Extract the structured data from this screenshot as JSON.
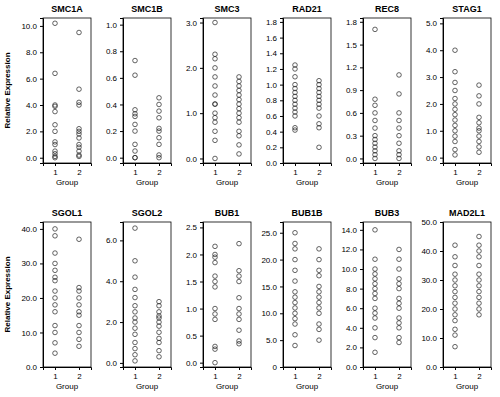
{
  "chart_data": [
    {
      "type": "scatter",
      "title": "SMC1A",
      "y_label": "Relative Expression",
      "x_label": "Group",
      "marker": "circle",
      "x": [
        1,
        1,
        1,
        1,
        1,
        1,
        1,
        1,
        1,
        1,
        1,
        1,
        1,
        2,
        2,
        2,
        2,
        2,
        2,
        2,
        2,
        2,
        2,
        2,
        2,
        2
      ],
      "values": [
        10.2,
        6.4,
        4.0,
        3.9,
        3.5,
        2.5,
        2.0,
        1.2,
        1.0,
        0.5,
        0.3,
        0.1,
        0.0,
        9.5,
        5.2,
        4.2,
        4.0,
        2.2,
        2.0,
        1.8,
        1.5,
        1.0,
        0.8,
        0.5,
        0.2,
        0.1
      ],
      "xlim": [
        0.5,
        2.5
      ],
      "xticks": [
        1,
        2
      ],
      "ylim": [
        -0.4,
        10.6
      ],
      "yticks": [
        {
          "value": 0,
          "label": "0.0"
        },
        {
          "value": 2,
          "label": "2.0"
        },
        {
          "value": 4,
          "label": "4.0"
        },
        {
          "value": 6,
          "label": "6.0"
        },
        {
          "value": 8,
          "label": "8.0"
        },
        {
          "value": 10,
          "label": "10.0"
        }
      ]
    },
    {
      "type": "scatter",
      "title": "SMC1B",
      "x_label": "Group",
      "marker": "circle",
      "x": [
        1,
        1,
        1,
        1,
        1,
        1,
        1,
        1,
        1,
        1,
        1,
        2,
        2,
        2,
        2,
        2,
        2,
        2,
        2,
        2,
        2
      ],
      "values": [
        0.73,
        0.62,
        0.36,
        0.33,
        0.31,
        0.25,
        0.2,
        0.1,
        0.05,
        0.0,
        0.0,
        0.45,
        0.4,
        0.35,
        0.3,
        0.22,
        0.2,
        0.15,
        0.1,
        0.02,
        0.0
      ],
      "xlim": [
        0.5,
        2.5
      ],
      "xticks": [
        1,
        2
      ],
      "ylim": [
        -0.04,
        1.05
      ],
      "yticks": [
        {
          "value": 0,
          "label": "0.0"
        },
        0.2,
        0.4,
        0.6,
        0.8,
        {
          "value": 1,
          "label": "1.0"
        }
      ]
    },
    {
      "type": "scatter",
      "title": "SMC3",
      "x_label": "Group",
      "marker": "circle",
      "x": [
        1,
        1,
        1,
        1,
        1,
        1,
        1,
        1,
        1,
        1,
        1,
        1,
        1,
        1,
        1,
        2,
        2,
        2,
        2,
        2,
        2,
        2,
        2,
        2,
        2,
        2,
        2,
        2,
        2,
        2
      ],
      "values": [
        3.0,
        2.3,
        2.2,
        2.0,
        1.8,
        1.6,
        1.4,
        1.2,
        1.2,
        1.0,
        0.9,
        0.8,
        0.6,
        0.4,
        0.0,
        1.8,
        1.7,
        1.6,
        1.5,
        1.4,
        1.3,
        1.2,
        1.1,
        1.0,
        0.9,
        0.8,
        0.6,
        0.5,
        0.3,
        0.1
      ],
      "xlim": [
        0.5,
        2.5
      ],
      "xticks": [
        1,
        2
      ],
      "ylim": [
        -0.1,
        3.1
      ],
      "yticks": [
        {
          "value": 0,
          "label": "0.0"
        },
        {
          "value": 1,
          "label": "1.0"
        },
        {
          "value": 2,
          "label": "2.0"
        },
        {
          "value": 3,
          "label": "3.0"
        }
      ]
    },
    {
      "type": "scatter",
      "title": "RAD21",
      "x_label": "Group",
      "marker": "circle",
      "x": [
        1,
        1,
        1,
        1,
        1,
        1,
        1,
        1,
        1,
        1,
        1,
        1,
        1,
        1,
        2,
        2,
        2,
        2,
        2,
        2,
        2,
        2,
        2,
        2,
        2,
        2
      ],
      "values": [
        1.25,
        1.2,
        1.1,
        1.0,
        0.95,
        0.9,
        0.85,
        0.8,
        0.75,
        0.7,
        0.65,
        0.6,
        0.45,
        0.42,
        1.05,
        1.0,
        0.95,
        0.9,
        0.85,
        0.8,
        0.75,
        0.7,
        0.6,
        0.5,
        0.45,
        0.2
      ],
      "xlim": [
        0.5,
        2.5
      ],
      "xticks": [
        1,
        2
      ],
      "ylim": [
        0,
        1.85
      ],
      "yticks": [
        {
          "value": 0,
          "label": "0.0"
        },
        0.2,
        0.4,
        0.6,
        0.8,
        {
          "value": 1,
          "label": "1.0"
        },
        1.2,
        1.4,
        1.6,
        1.8
      ]
    },
    {
      "type": "scatter",
      "title": "REC8",
      "x_label": "Group",
      "marker": "circle",
      "x": [
        1,
        1,
        1,
        1,
        1,
        1,
        1,
        1,
        1,
        1,
        1,
        1,
        1,
        2,
        2,
        2,
        2,
        2,
        2,
        2,
        2,
        2,
        2
      ],
      "values": [
        1.7,
        0.78,
        0.7,
        0.6,
        0.5,
        0.4,
        0.3,
        0.25,
        0.2,
        0.15,
        0.1,
        0.05,
        0.0,
        1.1,
        0.85,
        0.6,
        0.5,
        0.4,
        0.3,
        0.2,
        0.1,
        0.05,
        0.0
      ],
      "xlim": [
        0.5,
        2.5
      ],
      "xticks": [
        1,
        2
      ],
      "ylim": [
        -0.06,
        1.85
      ],
      "yticks": [
        {
          "value": 0,
          "label": "0.0"
        },
        0.3,
        0.6,
        0.9,
        1.2,
        1.5,
        1.8
      ]
    },
    {
      "type": "scatter",
      "title": "STAG1",
      "x_label": "Group",
      "marker": "circle",
      "x": [
        1,
        1,
        1,
        1,
        1,
        1,
        1,
        1,
        1,
        1,
        1,
        1,
        1,
        1,
        1,
        2,
        2,
        2,
        2,
        2,
        2,
        2,
        2,
        2,
        2,
        2
      ],
      "values": [
        4.0,
        3.2,
        2.8,
        2.5,
        2.2,
        2.0,
        1.8,
        1.6,
        1.4,
        1.2,
        1.0,
        0.8,
        0.6,
        0.3,
        0.1,
        2.7,
        2.3,
        2.0,
        1.5,
        1.3,
        1.1,
        1.0,
        0.8,
        0.6,
        0.4,
        0.2
      ],
      "xlim": [
        0.5,
        2.5
      ],
      "xticks": [
        1,
        2
      ],
      "ylim": [
        -0.2,
        5.2
      ],
      "yticks": [
        {
          "value": 0,
          "label": "0.0"
        },
        {
          "value": 1,
          "label": "1.0"
        },
        {
          "value": 2,
          "label": "2.0"
        },
        {
          "value": 3,
          "label": "3.0"
        },
        {
          "value": 4,
          "label": "4.0"
        },
        {
          "value": 5,
          "label": "5.0"
        }
      ]
    },
    {
      "type": "scatter",
      "title": "SGOL1",
      "y_label": "Relative Expression",
      "x_label": "Group",
      "marker": "circle",
      "x": [
        1,
        1,
        1,
        1,
        1,
        1,
        1,
        1,
        1,
        1,
        1,
        1,
        1,
        1,
        1,
        2,
        2,
        2,
        2,
        2,
        2,
        2,
        2,
        2,
        2,
        2
      ],
      "values": [
        40,
        38,
        33,
        30,
        28,
        26,
        25,
        22,
        20,
        18,
        16,
        12,
        10,
        7,
        4,
        37,
        23,
        22,
        20,
        18,
        16,
        15,
        12,
        10,
        8,
        6
      ],
      "xlim": [
        0.5,
        2.5
      ],
      "xticks": [
        1,
        2
      ],
      "ylim": [
        0,
        42
      ],
      "yticks": [
        {
          "value": 0,
          "label": "0.0"
        },
        {
          "value": 10,
          "label": "10.0"
        },
        {
          "value": 20,
          "label": "20.0"
        },
        {
          "value": 30,
          "label": "30.0"
        },
        {
          "value": 40,
          "label": "40.0"
        }
      ]
    },
    {
      "type": "scatter",
      "title": "SGOL2",
      "x_label": "Group",
      "marker": "circle",
      "x": [
        1,
        1,
        1,
        1,
        1,
        1,
        1,
        1,
        1,
        1,
        1,
        1,
        1,
        1,
        1,
        2,
        2,
        2,
        2,
        2,
        2,
        2,
        2,
        2,
        2,
        2,
        2
      ],
      "values": [
        6.6,
        5.0,
        4.2,
        3.6,
        3.2,
        2.8,
        2.5,
        2.2,
        2.0,
        1.7,
        1.4,
        1.0,
        0.7,
        0.4,
        0.1,
        3.0,
        2.8,
        2.5,
        2.3,
        2.2,
        2.0,
        1.8,
        1.5,
        1.2,
        1.0,
        0.6,
        0.3
      ],
      "xlim": [
        0.5,
        2.5
      ],
      "xticks": [
        1,
        2
      ],
      "ylim": [
        -0.2,
        6.9
      ],
      "yticks": [
        {
          "value": 0,
          "label": "0.0"
        },
        {
          "value": 2,
          "label": "2.0"
        },
        {
          "value": 4,
          "label": "4.0"
        },
        {
          "value": 6,
          "label": "6.0"
        }
      ]
    },
    {
      "type": "scatter",
      "title": "BUB1",
      "x_label": "Group",
      "marker": "circle",
      "x": [
        1,
        1,
        1,
        1,
        1,
        1,
        1,
        1,
        1,
        1,
        1,
        1,
        1,
        2,
        2,
        2,
        2,
        2,
        2,
        2,
        2,
        2,
        2,
        2
      ],
      "values": [
        2.15,
        2.0,
        1.95,
        1.85,
        1.6,
        1.5,
        1.4,
        1.0,
        0.9,
        0.8,
        0.3,
        0.25,
        0.0,
        2.2,
        1.7,
        1.6,
        1.5,
        1.2,
        1.0,
        0.9,
        0.8,
        0.6,
        0.4,
        0.35
      ],
      "xlim": [
        0.5,
        2.5
      ],
      "xticks": [
        1,
        2
      ],
      "ylim": [
        -0.08,
        2.6
      ],
      "yticks": [
        {
          "value": 0,
          "label": "0.0"
        },
        0.5,
        {
          "value": 1,
          "label": "1.0"
        },
        1.5,
        {
          "value": 2,
          "label": "2.0"
        },
        2.5
      ]
    },
    {
      "type": "scatter",
      "title": "BUB1B",
      "x_label": "Group",
      "marker": "circle",
      "x": [
        1,
        1,
        1,
        1,
        1,
        1,
        1,
        1,
        1,
        1,
        1,
        1,
        1,
        1,
        1,
        2,
        2,
        2,
        2,
        2,
        2,
        2,
        2,
        2,
        2,
        2,
        2,
        2
      ],
      "values": [
        25,
        23,
        22,
        20,
        18,
        16,
        14,
        13,
        12,
        11,
        10,
        9,
        8,
        6,
        4,
        22,
        20,
        18,
        17,
        15,
        14,
        13,
        12,
        11,
        10,
        8,
        7,
        5
      ],
      "xlim": [
        0.5,
        2.5
      ],
      "xticks": [
        1,
        2
      ],
      "ylim": [
        0,
        27
      ],
      "yticks": [
        0,
        {
          "value": 5,
          "label": "5.0"
        },
        {
          "value": 10,
          "label": "10.0"
        },
        {
          "value": 15,
          "label": "15.0"
        },
        {
          "value": 20,
          "label": "20.0"
        },
        {
          "value": 25,
          "label": "25.0"
        }
      ]
    },
    {
      "type": "scatter",
      "title": "BUB3",
      "x_label": "Group",
      "marker": "circle",
      "x": [
        1,
        1,
        1,
        1,
        1,
        1,
        1,
        1,
        1,
        1,
        1,
        1,
        1,
        1,
        1,
        2,
        2,
        2,
        2,
        2,
        2,
        2,
        2,
        2,
        2,
        2,
        2,
        2,
        2
      ],
      "values": [
        14,
        11,
        10,
        9.5,
        9,
        8.5,
        8,
        7.5,
        7,
        6,
        5.5,
        5,
        4,
        3,
        1.5,
        12,
        11,
        10,
        9,
        8.5,
        8,
        7,
        6.5,
        6,
        5,
        4.5,
        4,
        3,
        2.5
      ],
      "xlim": [
        0.5,
        2.5
      ],
      "xticks": [
        1,
        2
      ],
      "ylim": [
        0,
        14.8
      ],
      "yticks": [
        {
          "value": 0,
          "label": "0.0"
        },
        {
          "value": 2,
          "label": "2.0"
        },
        {
          "value": 4,
          "label": "4.0"
        },
        {
          "value": 6,
          "label": "6.0"
        },
        {
          "value": 8,
          "label": "8.0"
        },
        {
          "value": 10,
          "label": "10.0"
        },
        {
          "value": 12,
          "label": "12.0"
        },
        {
          "value": 14,
          "label": "14.0"
        }
      ]
    },
    {
      "type": "scatter",
      "title": "MAD2L1",
      "x_label": "Group",
      "marker": "circle",
      "x": [
        1,
        1,
        1,
        1,
        1,
        1,
        1,
        1,
        1,
        1,
        1,
        1,
        1,
        1,
        1,
        2,
        2,
        2,
        2,
        2,
        2,
        2,
        2,
        2,
        2,
        2,
        2,
        2
      ],
      "values": [
        42,
        38,
        35,
        32,
        30,
        28,
        26,
        24,
        22,
        20,
        18,
        16,
        13,
        11,
        7,
        45,
        42,
        40,
        38,
        35,
        32,
        30,
        28,
        26,
        24,
        22,
        20,
        18
      ],
      "xlim": [
        0.5,
        2.5
      ],
      "xticks": [
        1,
        2
      ],
      "ylim": [
        0,
        50
      ],
      "yticks": [
        {
          "value": 0,
          "label": "0.0"
        },
        {
          "value": 10,
          "label": "10.0"
        },
        {
          "value": 20,
          "label": "20.0"
        },
        {
          "value": 30,
          "label": "30.0"
        },
        {
          "value": 40,
          "label": "40.0"
        },
        {
          "value": 50,
          "label": "50.0"
        }
      ]
    }
  ]
}
